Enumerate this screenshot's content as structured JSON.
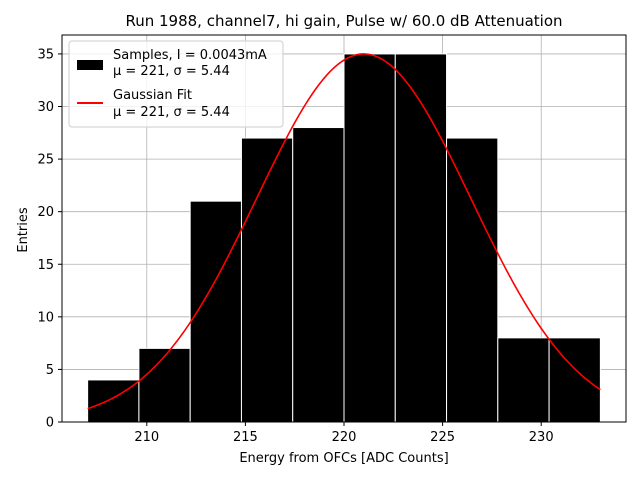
{
  "chart_data": {
    "type": "bar",
    "title": "Run 1988, channel7, hi gain, Pulse w/ 60.0 dB Attenuation",
    "xlabel": "Energy from OFCs [ADC Counts]",
    "ylabel": "Entries",
    "xlim": [
      205.7,
      234.3
    ],
    "ylim": [
      0,
      36.8
    ],
    "xticks": [
      210,
      215,
      220,
      225,
      230
    ],
    "yticks": [
      0,
      5,
      10,
      15,
      20,
      25,
      30,
      35
    ],
    "grid": true,
    "legend_position": "top-left",
    "histogram": {
      "name": "Samples, I = 0.0043mA",
      "stats": "μ = 221, σ = 5.44",
      "color": "#000000",
      "edge_color": "#ffffff",
      "bin_edges": [
        207.0,
        209.6,
        212.2,
        214.8,
        217.4,
        220.0,
        222.6,
        225.2,
        227.8,
        230.4,
        233.0
      ],
      "counts": [
        4,
        7,
        21,
        27,
        28,
        35,
        35,
        27,
        8,
        8
      ]
    },
    "fit": {
      "name": "Gaussian Fit",
      "stats": "μ = 221, σ = 5.44",
      "color": "#ff0000",
      "mu": 221.0,
      "sigma": 5.44,
      "amplitude": 35.0,
      "x_range": [
        207.0,
        233.0
      ]
    }
  }
}
